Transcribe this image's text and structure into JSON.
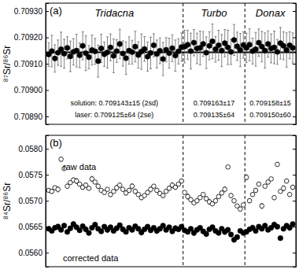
{
  "chart_data": [
    {
      "type": "scatter",
      "panel": "(a)",
      "ylabel": "⁸⁷Sr/⁸⁶Sr",
      "tick_labels": "y",
      "xlim": [
        0,
        81
      ],
      "ylim": [
        0.70887,
        0.70933
      ],
      "yticks": [
        {
          "value": 0.7089,
          "label": "0.70890"
        },
        {
          "value": 0.709,
          "label": "0.70900"
        },
        {
          "value": 0.7091,
          "label": "0.70910"
        },
        {
          "value": 0.7092,
          "label": "0.70920"
        },
        {
          "value": 0.7093,
          "label": "0.70930"
        }
      ],
      "dividers": [
        44.5,
        64.5
      ],
      "reference": 0.709143,
      "groups": [
        {
          "name": "Tridacna",
          "solution": "solution: 0.709143±15 (2sd)",
          "laser": "laser: 0.709125±64 (2se)"
        },
        {
          "name": "Turbo",
          "solution": "0.709163±17",
          "laser": "0.709135±64"
        },
        {
          "name": "Donax",
          "solution": "0.709158±15",
          "laser": "0.709150±60"
        }
      ],
      "x": [
        1,
        2,
        3,
        4,
        5,
        6,
        7,
        8,
        9,
        10,
        11,
        12,
        13,
        14,
        15,
        16,
        17,
        18,
        19,
        20,
        21,
        22,
        23,
        24,
        25,
        26,
        27,
        28,
        29,
        30,
        31,
        32,
        33,
        34,
        35,
        36,
        37,
        38,
        39,
        40,
        41,
        42,
        43,
        44,
        45,
        46,
        47,
        48,
        49,
        50,
        51,
        52,
        53,
        54,
        55,
        56,
        57,
        58,
        59,
        60,
        61,
        62,
        63,
        64,
        65,
        66,
        67,
        68,
        69,
        70,
        71,
        72,
        73,
        74,
        75,
        76,
        77,
        78,
        79,
        80
      ],
      "series": [
        {
          "color": "#000000",
          "marker": "filled_circle",
          "values": [
            0.709135,
            0.709148,
            0.70912,
            0.709142,
            0.709155,
            0.709138,
            0.70916,
            0.709128,
            0.709145,
            0.70915,
            0.709132,
            0.709168,
            0.70914,
            0.709125,
            0.709152,
            0.709147,
            0.70911,
            0.709158,
            0.709136,
            0.709143,
            0.709162,
            0.70913,
            0.709148,
            0.709175,
            0.709139,
            0.709121,
            0.70915,
            0.709144,
            0.709165,
            0.709133,
            0.709146,
            0.709156,
            0.709127,
            0.709141,
            0.70917,
            0.709137,
            0.709149,
            0.709118,
            0.709153,
            0.70914,
            0.709159,
            0.709131,
            0.709147,
            0.709163,
            0.709165,
            0.709172,
            0.709148,
            0.70918,
            0.709158,
            0.70916,
            0.709175,
            0.709142,
            0.709168,
            0.709185,
            0.709155,
            0.70917,
            0.70915,
            0.709178,
            0.709162,
            0.709145,
            0.70919,
            0.709166,
            0.709152,
            0.709171,
            0.70916,
            0.709172,
            0.709148,
            0.709155,
            0.70918,
            0.709165,
            0.70915,
            0.709175,
            0.709158,
            0.709162,
            0.709145,
            0.709178,
            0.709168,
            0.709152,
            0.70917,
            0.70916
          ],
          "errors": [
            4.5e-05,
            6e-05,
            5.2e-05,
            4.8e-05,
            6.5e-05,
            5.5e-05,
            4.2e-05,
            5.8e-05,
            5e-05,
            6.2e-05,
            4.7e-05,
            5.3e-05,
            6.6e-05,
            4.4e-05,
            5.7e-05,
            4.9e-05,
            6.1e-05,
            5.4e-05,
            4.6e-05,
            5.9e-05,
            5.1e-05,
            6.4e-05,
            4.3e-05,
            5.6e-05,
            4.8e-05,
            6.2e-05,
            5.2e-05,
            4.5e-05,
            5.8e-05,
            5e-05,
            6.7e-05,
            4.7e-05,
            5.5e-05,
            6e-05,
            4.4e-05,
            5.3e-05,
            4.9e-05,
            6.3e-05,
            4.6e-05,
            5.7e-05,
            5.1e-05,
            5.9e-05,
            4.8e-05,
            5.4e-05,
            6.2e-05,
            5.5e-05,
            6.8e-05,
            5e-05,
            5.8e-05,
            6.4e-05,
            4.7e-05,
            6e-05,
            5.3e-05,
            6.6e-05,
            4.9e-05,
            5.7e-05,
            6.1e-05,
            5.2e-05,
            6.5e-05,
            4.8e-05,
            5.9e-05,
            5.4e-05,
            6.3e-05,
            5e-05,
            5.6e-05,
            6.1e-05,
            4.9e-05,
            6.4e-05,
            5.2e-05,
            5.8e-05,
            6.7e-05,
            5e-05,
            5.5e-05,
            6.2e-05,
            4.7e-05,
            6e-05,
            5.3e-05,
            6.5e-05,
            5.1e-05,
            5.7e-05
          ]
        }
      ]
    },
    {
      "type": "scatter",
      "panel": "(b)",
      "ylabel": "⁸⁴Sr/⁸⁶Sr",
      "tick_labels": "y",
      "xlim": [
        0,
        81
      ],
      "ylim": [
        0.05573,
        0.05826
      ],
      "yticks": [
        {
          "value": 0.056,
          "label": "0.0560"
        },
        {
          "value": 0.0565,
          "label": "0.0565"
        },
        {
          "value": 0.057,
          "label": "0.0570"
        },
        {
          "value": 0.0575,
          "label": "0.0575"
        },
        {
          "value": 0.058,
          "label": "0.0580"
        }
      ],
      "dividers": [
        44.5,
        64.5
      ],
      "x": [
        1,
        2,
        3,
        4,
        5,
        6,
        7,
        8,
        9,
        10,
        11,
        12,
        13,
        14,
        15,
        16,
        17,
        18,
        19,
        20,
        21,
        22,
        23,
        24,
        25,
        26,
        27,
        28,
        29,
        30,
        31,
        32,
        33,
        34,
        35,
        36,
        37,
        38,
        39,
        40,
        41,
        42,
        43,
        44,
        45,
        46,
        47,
        48,
        49,
        50,
        51,
        52,
        53,
        54,
        55,
        56,
        57,
        58,
        59,
        60,
        61,
        62,
        63,
        64,
        65,
        66,
        67,
        68,
        69,
        70,
        71,
        72,
        73,
        74,
        75,
        76,
        77,
        78,
        79,
        80
      ],
      "series": [
        {
          "name": "raw data",
          "color": "#000000",
          "marker": "open_circle",
          "values": [
            0.0572,
            0.05718,
            0.05725,
            0.05722,
            0.0578,
            0.05762,
            0.05728,
            0.05735,
            0.0574,
            0.05738,
            0.05732,
            0.05726,
            0.0573,
            0.05724,
            0.05742,
            0.05736,
            0.05728,
            0.0572,
            0.05716,
            0.05722,
            0.05712,
            0.05718,
            0.05725,
            0.0573,
            0.05722,
            0.05715,
            0.0572,
            0.05728,
            0.05718,
            0.05712,
            0.05706,
            0.0571,
            0.05716,
            0.05722,
            0.05728,
            0.0572,
            0.05714,
            0.0571,
            0.05718,
            0.05724,
            0.0573,
            0.05726,
            0.05732,
            0.05738,
            0.05716,
            0.05708,
            0.05702,
            0.05696,
            0.057,
            0.05706,
            0.05712,
            0.05704,
            0.05698,
            0.05694,
            0.057,
            0.05708,
            0.05715,
            0.05722,
            0.05765,
            0.0571,
            0.057,
            0.0569,
            0.05684,
            0.05692,
            0.05745,
            0.057,
            0.05712,
            0.0572,
            0.05732,
            0.0569,
            0.05728,
            0.05736,
            0.05742,
            0.05706,
            0.0577,
            0.05718,
            0.05724,
            0.05738,
            0.05712,
            0.05726
          ],
          "errors": [
            3e-05,
            4e-05,
            3e-05,
            5e-05,
            4e-05,
            3e-05,
            4e-05,
            3e-05,
            4e-05,
            5e-05,
            3e-05,
            4e-05,
            4e-05,
            3e-05,
            5e-05,
            3e-05,
            4e-05,
            3e-05,
            4e-05,
            3e-05,
            4e-05,
            3e-05,
            5e-05,
            4e-05,
            3e-05,
            4e-05,
            3e-05,
            5e-05,
            4e-05,
            3e-05,
            4e-05,
            3e-05,
            4e-05,
            5e-05,
            3e-05,
            4e-05,
            3e-05,
            4e-05,
            3e-05,
            4e-05,
            5e-05,
            4e-05,
            3e-05,
            4e-05,
            3e-05,
            5e-05,
            4e-05,
            3e-05,
            4e-05,
            3e-05,
            3e-05,
            4e-05,
            5e-05,
            3e-05,
            4e-05,
            3e-05,
            4e-05,
            5e-05,
            3e-05,
            4e-05,
            4e-05,
            3e-05,
            4e-05,
            3e-05,
            5e-05,
            4e-05,
            3e-05,
            4e-05,
            3e-05,
            5e-05,
            3e-05,
            4e-05,
            3e-05,
            4e-05,
            4e-05,
            3e-05,
            5e-05,
            4e-05,
            3e-05,
            4e-05
          ]
        },
        {
          "name": "corrected data",
          "color": "#000000",
          "marker": "filled_circle",
          "values": [
            0.05646,
            0.05642,
            0.05648,
            0.0565,
            0.05644,
            0.05652,
            0.0564,
            0.05647,
            0.05655,
            0.05649,
            0.05643,
            0.05651,
            0.05645,
            0.05638,
            0.05648,
            0.05654,
            0.05646,
            0.05641,
            0.0565,
            0.05644,
            0.05649,
            0.05642,
            0.05647,
            0.05653,
            0.05645,
            0.0564,
            0.05648,
            0.05644,
            0.05651,
            0.05646,
            0.05639,
            0.05645,
            0.0565,
            0.05643,
            0.05648,
            0.05642,
            0.05646,
            0.05652,
            0.05644,
            0.05649,
            0.05641,
            0.05647,
            0.05645,
            0.0565,
            0.05643,
            0.0564,
            0.05646,
            0.05638,
            0.05644,
            0.05648,
            0.05641,
            0.05636,
            0.05645,
            0.05649,
            0.05642,
            0.05638,
            0.05646,
            0.0564,
            0.05644,
            0.05635,
            0.05625,
            0.0563,
            0.05642,
            0.05638,
            0.0564,
            0.05645,
            0.05648,
            0.05642,
            0.0565,
            0.05646,
            0.05652,
            0.05644,
            0.05648,
            0.05654,
            0.0565,
            0.05628,
            0.05646,
            0.05652,
            0.05648,
            0.05655
          ],
          "errors": [
            4e-05,
            3e-05,
            4e-05,
            5e-05,
            3e-05,
            4e-05,
            4e-05,
            3e-05,
            5e-05,
            4e-05,
            3e-05,
            4e-05,
            5e-05,
            4e-05,
            3e-05,
            4e-05,
            3e-05,
            4e-05,
            4e-05,
            5e-05,
            3e-05,
            4e-05,
            3e-05,
            4e-05,
            5e-05,
            4e-05,
            3e-05,
            4e-05,
            3e-05,
            4e-05,
            5e-05,
            3e-05,
            4e-05,
            4e-05,
            3e-05,
            5e-05,
            4e-05,
            3e-05,
            4e-05,
            3e-05,
            4e-05,
            5e-05,
            4e-05,
            3e-05,
            4e-05,
            4e-05,
            3e-05,
            5e-05,
            4e-05,
            3e-05,
            4e-05,
            5e-05,
            3e-05,
            4e-05,
            4e-05,
            3e-05,
            4e-05,
            5e-05,
            4e-05,
            3e-05,
            5e-05,
            4e-05,
            3e-05,
            4e-05,
            3e-05,
            4e-05,
            5e-05,
            4e-05,
            3e-05,
            4e-05,
            4e-05,
            3e-05,
            4e-05,
            5e-05,
            3e-05,
            4e-05,
            4e-05,
            3e-05,
            5e-05,
            4e-05
          ]
        }
      ]
    }
  ]
}
